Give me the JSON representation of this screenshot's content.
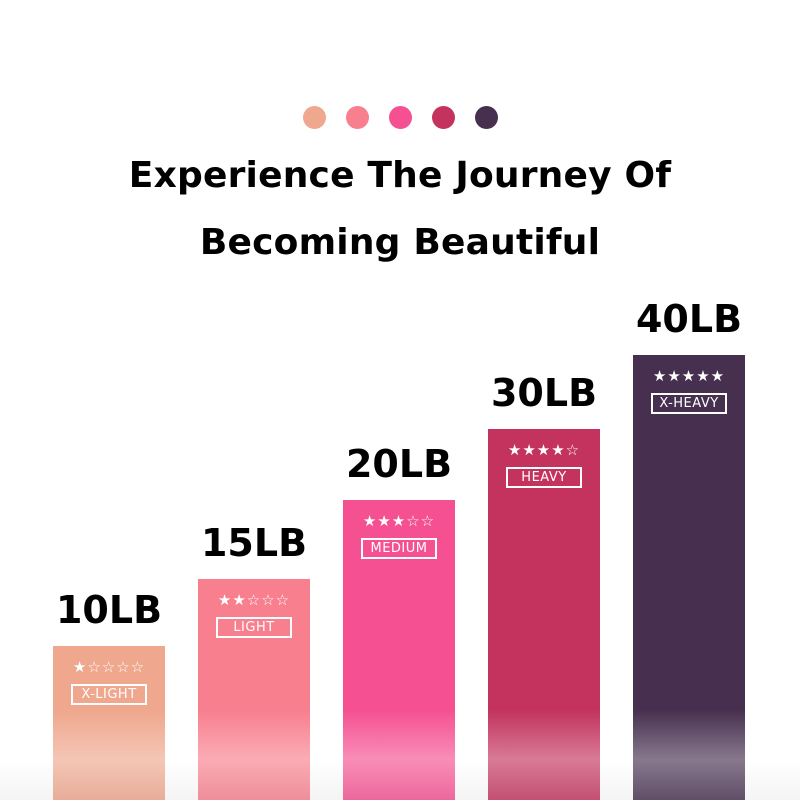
{
  "header": {
    "dots": [
      "#EFA78E",
      "#F87F8E",
      "#F55091",
      "#C3335E",
      "#47304F"
    ],
    "title_line1": "Experience The Journey Of",
    "title_line2": "Becoming Beautiful"
  },
  "bands": [
    {
      "weight": "10LB",
      "level": "X-LIGHT",
      "stars_filled": 1,
      "stars_total": 5,
      "color": "#EFA78E"
    },
    {
      "weight": "15LB",
      "level": "LIGHT",
      "stars_filled": 2,
      "stars_total": 5,
      "color": "#F87F8E"
    },
    {
      "weight": "20LB",
      "level": "MEDIUM",
      "stars_filled": 3,
      "stars_total": 5,
      "color": "#F55091"
    },
    {
      "weight": "30LB",
      "level": "HEAVY",
      "stars_filled": 4,
      "stars_total": 5,
      "color": "#C3335E"
    },
    {
      "weight": "40LB",
      "level": "X-HEAVY",
      "stars_filled": 5,
      "stars_total": 5,
      "color": "#47304F"
    }
  ]
}
